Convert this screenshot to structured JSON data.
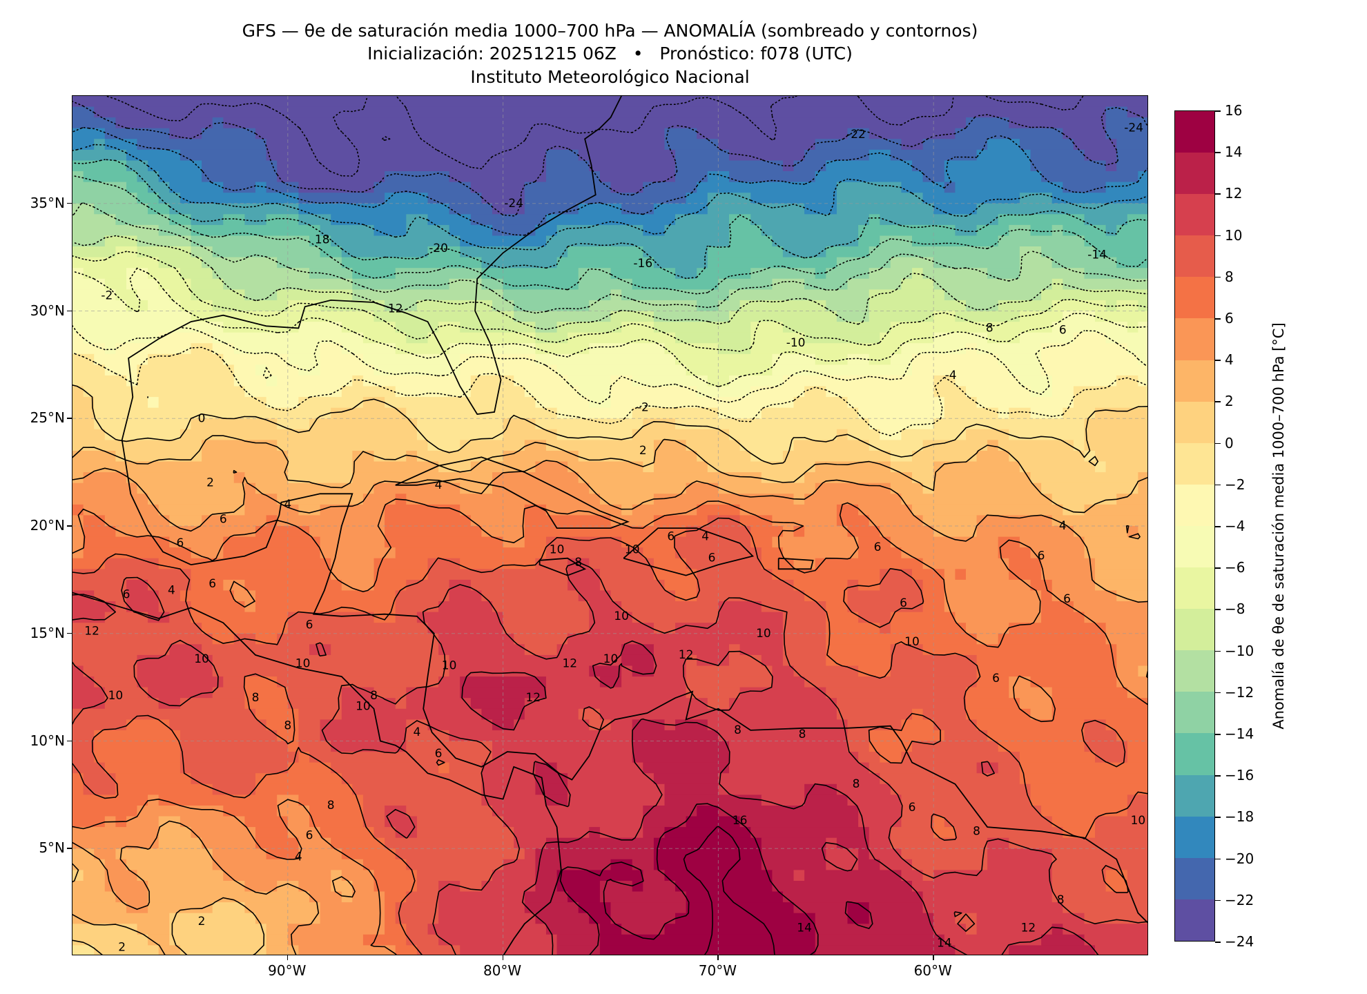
{
  "title": {
    "line1": "GFS — θe de saturación media 1000–700 hPa — ANOMALÍA (sombreado y contornos)",
    "line2": "Inicialización: 20251215 06Z   •   Pronóstico: f078 (UTC)",
    "line3": "Instituto Meteorológico Nacional"
  },
  "axes": {
    "lon_range": [
      -100,
      -50
    ],
    "lat_range": [
      0,
      40
    ],
    "y_ticks": [
      {
        "value": 35,
        "label": "35°N"
      },
      {
        "value": 30,
        "label": "30°N"
      },
      {
        "value": 25,
        "label": "25°N"
      },
      {
        "value": 20,
        "label": "20°N"
      },
      {
        "value": 15,
        "label": "15°N"
      },
      {
        "value": 10,
        "label": "10°N"
      },
      {
        "value": 5,
        "label": "5°N"
      }
    ],
    "x_ticks": [
      {
        "value": -90,
        "label": "90°W"
      },
      {
        "value": -80,
        "label": "80°W"
      },
      {
        "value": -70,
        "label": "70°W"
      },
      {
        "value": -60,
        "label": "60°W"
      }
    ]
  },
  "colorbar": {
    "label": "Anomalía de θe de saturación media 1000–700 hPa [°C]",
    "ticks": [
      "16",
      "14",
      "12",
      "10",
      "8",
      "6",
      "4",
      "2",
      "0",
      "−2",
      "−4",
      "−6",
      "−8",
      "−10",
      "−12",
      "−14",
      "−16",
      "−18",
      "−20",
      "−22",
      "−24"
    ],
    "levels": [
      -24,
      -22,
      -20,
      -18,
      -16,
      -14,
      -12,
      -10,
      -8,
      -6,
      -4,
      -2,
      0,
      2,
      4,
      6,
      8,
      10,
      12,
      14,
      16
    ],
    "colors": [
      "#5e4fa2",
      "#4467ae",
      "#3288bd",
      "#4ea6b0",
      "#66c2a5",
      "#8fd2a4",
      "#b3e0a2",
      "#d3ee9b",
      "#e9f6a1",
      "#f7fbb4",
      "#fef8b2",
      "#fee594",
      "#fed27f",
      "#fdb567",
      "#fa9656",
      "#f47245",
      "#e65c4b",
      "#d6404e",
      "#bb2149",
      "#9e0142"
    ]
  },
  "chart_data": {
    "type": "heatmap",
    "variable": "Anomalía de θe de saturación media 1000–700 hPa",
    "units": "°C",
    "xlim": [
      -100,
      -50
    ],
    "ylim": [
      0,
      40
    ],
    "contour_interval": 2,
    "negative_contours": "dotted",
    "contour_labels": [
      {
        "text": "-22",
        "lon": -63.6,
        "lat": 38.2
      },
      {
        "text": "-24",
        "lon": -79.5,
        "lat": 35.0
      },
      {
        "text": "-24",
        "lon": -50.7,
        "lat": 38.5
      },
      {
        "text": "18",
        "lon": -88.4,
        "lat": 33.3
      },
      {
        "text": "-20",
        "lon": -83.0,
        "lat": 32.9
      },
      {
        "text": "-16",
        "lon": -73.5,
        "lat": 32.2
      },
      {
        "text": "-14",
        "lon": -52.4,
        "lat": 32.6
      },
      {
        "text": "-2",
        "lon": -98.4,
        "lat": 30.7
      },
      {
        "text": "12",
        "lon": -85.0,
        "lat": 30.1
      },
      {
        "text": "-10",
        "lon": -66.4,
        "lat": 28.5
      },
      {
        "text": "8",
        "lon": -57.4,
        "lat": 29.2
      },
      {
        "text": "6",
        "lon": -54.0,
        "lat": 29.1
      },
      {
        "text": "-4",
        "lon": -59.2,
        "lat": 27.0
      },
      {
        "text": "-2",
        "lon": -73.5,
        "lat": 25.5
      },
      {
        "text": "0",
        "lon": -94.0,
        "lat": 25.0
      },
      {
        "text": "2",
        "lon": -73.5,
        "lat": 23.5
      },
      {
        "text": "2",
        "lon": -93.6,
        "lat": 22.0
      },
      {
        "text": "4",
        "lon": -83.0,
        "lat": 21.9
      },
      {
        "text": "4",
        "lon": -90.0,
        "lat": 21.0
      },
      {
        "text": "6",
        "lon": -93.0,
        "lat": 20.3
      },
      {
        "text": "6",
        "lon": -95.0,
        "lat": 19.2
      },
      {
        "text": "6",
        "lon": -93.5,
        "lat": 17.3
      },
      {
        "text": "6",
        "lon": -97.5,
        "lat": 16.8
      },
      {
        "text": "4",
        "lon": -95.4,
        "lat": 17.0
      },
      {
        "text": "6",
        "lon": -89.0,
        "lat": 15.4
      },
      {
        "text": "10",
        "lon": -77.5,
        "lat": 18.9
      },
      {
        "text": "8",
        "lon": -76.5,
        "lat": 18.3
      },
      {
        "text": "10",
        "lon": -74.0,
        "lat": 18.9
      },
      {
        "text": "6",
        "lon": -72.2,
        "lat": 19.5
      },
      {
        "text": "4",
        "lon": -70.6,
        "lat": 19.5
      },
      {
        "text": "6",
        "lon": -70.3,
        "lat": 18.5
      },
      {
        "text": "6",
        "lon": -62.6,
        "lat": 19.0
      },
      {
        "text": "4",
        "lon": -54.0,
        "lat": 20.0
      },
      {
        "text": "6",
        "lon": -55.0,
        "lat": 18.6
      },
      {
        "text": "6",
        "lon": -53.8,
        "lat": 16.6
      },
      {
        "text": "6",
        "lon": -61.4,
        "lat": 16.4
      },
      {
        "text": "10",
        "lon": -61.0,
        "lat": 14.6
      },
      {
        "text": "10",
        "lon": -74.5,
        "lat": 15.8
      },
      {
        "text": "10",
        "lon": -67.9,
        "lat": 15.0
      },
      {
        "text": "12",
        "lon": -76.9,
        "lat": 13.6
      },
      {
        "text": "10",
        "lon": -75.0,
        "lat": 13.8
      },
      {
        "text": "12",
        "lon": -71.5,
        "lat": 14.0
      },
      {
        "text": "10",
        "lon": -82.5,
        "lat": 13.5
      },
      {
        "text": "10",
        "lon": -94.0,
        "lat": 13.8
      },
      {
        "text": "10",
        "lon": -98.0,
        "lat": 12.1
      },
      {
        "text": "12",
        "lon": -99.1,
        "lat": 15.1
      },
      {
        "text": "10",
        "lon": -89.3,
        "lat": 13.6
      },
      {
        "text": "8",
        "lon": -91.5,
        "lat": 12.0
      },
      {
        "text": "8",
        "lon": -86.0,
        "lat": 12.1
      },
      {
        "text": "10",
        "lon": -86.5,
        "lat": 11.6
      },
      {
        "text": "4",
        "lon": -84.0,
        "lat": 10.4
      },
      {
        "text": "6",
        "lon": -83.0,
        "lat": 9.4
      },
      {
        "text": "12",
        "lon": -78.6,
        "lat": 12.0
      },
      {
        "text": "8",
        "lon": -69.1,
        "lat": 10.5
      },
      {
        "text": "8",
        "lon": -66.1,
        "lat": 10.3
      },
      {
        "text": "6",
        "lon": -57.1,
        "lat": 12.9
      },
      {
        "text": "8",
        "lon": -63.6,
        "lat": 8.0
      },
      {
        "text": "6",
        "lon": -61.0,
        "lat": 6.9
      },
      {
        "text": "8",
        "lon": -58.0,
        "lat": 5.8
      },
      {
        "text": "10",
        "lon": -50.5,
        "lat": 6.3
      },
      {
        "text": "16",
        "lon": -69.0,
        "lat": 6.3
      },
      {
        "text": "8",
        "lon": -88.0,
        "lat": 7.0
      },
      {
        "text": "8",
        "lon": -90.0,
        "lat": 10.7
      },
      {
        "text": "6",
        "lon": -89.0,
        "lat": 5.6
      },
      {
        "text": "4",
        "lon": -89.5,
        "lat": 4.6
      },
      {
        "text": "2",
        "lon": -94.0,
        "lat": 1.6
      },
      {
        "text": "2",
        "lon": -97.7,
        "lat": 0.4
      },
      {
        "text": "14",
        "lon": -66.0,
        "lat": 1.3
      },
      {
        "text": "12",
        "lon": -55.6,
        "lat": 1.3
      },
      {
        "text": "14",
        "lon": -59.5,
        "lat": 0.6
      },
      {
        "text": "8",
        "lon": -54.1,
        "lat": 2.6
      }
    ]
  }
}
